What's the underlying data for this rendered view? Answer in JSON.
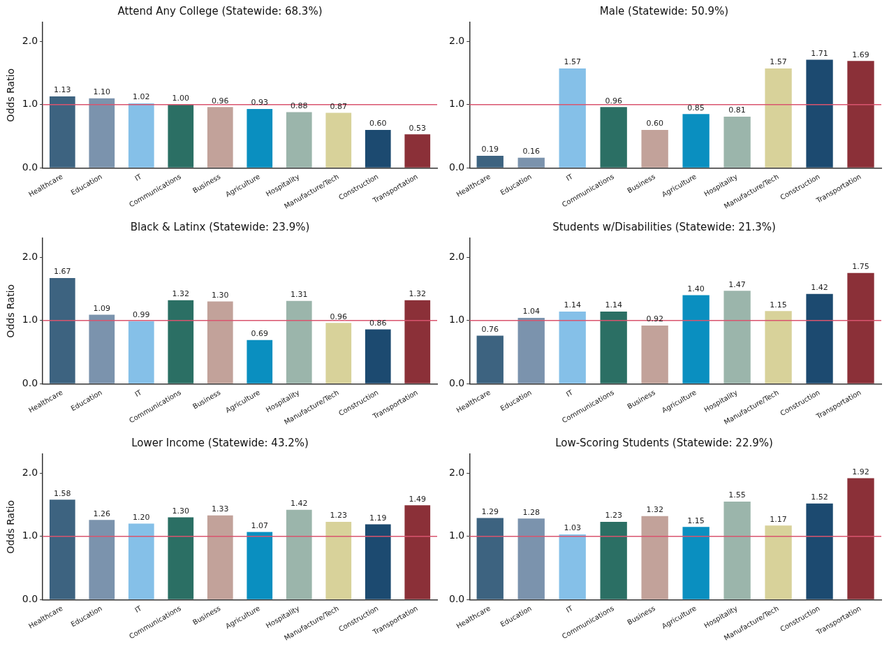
{
  "chart_data": [
    {
      "type": "bar",
      "title": "Attend Any College (Statewide: 68.3%)",
      "ylabel": "Odds Ratio",
      "categories": [
        "Healthcare",
        "Education",
        "IT",
        "Communications",
        "Business",
        "Agriculture",
        "Hospitality",
        "Manufacture/Tech",
        "Construction",
        "Transportation"
      ],
      "values": [
        1.13,
        1.1,
        1.02,
        1.0,
        0.96,
        0.93,
        0.88,
        0.87,
        0.6,
        0.53
      ],
      "value_labels": [
        "1.13",
        "1.10",
        "1.02",
        "1.00",
        "0.96",
        "0.93",
        "0.88",
        "0.87",
        "0.60",
        "0.53"
      ],
      "colors": [
        "#3d6380",
        "#7b93ad",
        "#85c0e8",
        "#2b6f64",
        "#c2a29a",
        "#0a8fc0",
        "#9bb5ab",
        "#d8d29a",
        "#1c4a70",
        "#8b3038"
      ],
      "ylim": [
        0,
        2.3
      ],
      "yticks": [
        {
          "value": 0,
          "label": "0.0"
        },
        {
          "value": 1,
          "label": "1.0"
        },
        {
          "value": 2,
          "label": "2.0"
        }
      ],
      "ref_lines": [
        {
          "axis": "y",
          "value": 1,
          "color": "#d9546e"
        }
      ]
    },
    {
      "type": "bar",
      "title": "Male (Statewide: 50.9%)",
      "categories": [
        "Healthcare",
        "Education",
        "IT",
        "Communications",
        "Business",
        "Agriculture",
        "Hospitality",
        "Manufacture/Tech",
        "Construction",
        "Transportation"
      ],
      "values": [
        0.19,
        0.16,
        1.57,
        0.96,
        0.6,
        0.85,
        0.81,
        1.57,
        1.71,
        1.69
      ],
      "value_labels": [
        "0.19",
        "0.16",
        "1.57",
        "0.96",
        "0.60",
        "0.85",
        "0.81",
        "1.57",
        "1.71",
        "1.69"
      ],
      "colors": [
        "#3d6380",
        "#7b93ad",
        "#85c0e8",
        "#2b6f64",
        "#c2a29a",
        "#0a8fc0",
        "#9bb5ab",
        "#d8d29a",
        "#1c4a70",
        "#8b3038"
      ],
      "ylim": [
        0,
        2.3
      ],
      "yticks": [
        {
          "value": 0,
          "label": "0.0"
        },
        {
          "value": 1,
          "label": "1.0"
        },
        {
          "value": 2,
          "label": "2.0"
        }
      ],
      "ref_lines": [
        {
          "axis": "y",
          "value": 1,
          "color": "#d9546e"
        }
      ]
    },
    {
      "type": "bar",
      "title": "Black & Latinx (Statewide: 23.9%)",
      "ylabel": "Odds Ratio",
      "categories": [
        "Healthcare",
        "Education",
        "IT",
        "Communications",
        "Business",
        "Agriculture",
        "Hospitality",
        "Manufacture/Tech",
        "Construction",
        "Transportation"
      ],
      "values": [
        1.67,
        1.09,
        0.99,
        1.32,
        1.3,
        0.69,
        1.31,
        0.96,
        0.86,
        1.32
      ],
      "value_labels": [
        "1.67",
        "1.09",
        "0.99",
        "1.32",
        "1.30",
        "0.69",
        "1.31",
        "0.96",
        "0.86",
        "1.32"
      ],
      "colors": [
        "#3d6380",
        "#7b93ad",
        "#85c0e8",
        "#2b6f64",
        "#c2a29a",
        "#0a8fc0",
        "#9bb5ab",
        "#d8d29a",
        "#1c4a70",
        "#8b3038"
      ],
      "ylim": [
        0,
        2.3
      ],
      "yticks": [
        {
          "value": 0,
          "label": "0.0"
        },
        {
          "value": 1,
          "label": "1.0"
        },
        {
          "value": 2,
          "label": "2.0"
        }
      ],
      "ref_lines": [
        {
          "axis": "y",
          "value": 1,
          "color": "#d9546e"
        }
      ]
    },
    {
      "type": "bar",
      "title": "Students w/Disabilities (Statewide: 21.3%)",
      "categories": [
        "Healthcare",
        "Education",
        "IT",
        "Communications",
        "Business",
        "Agriculture",
        "Hospitality",
        "Manufacture/Tech",
        "Construction",
        "Transportation"
      ],
      "values": [
        0.76,
        1.04,
        1.14,
        1.14,
        0.92,
        1.4,
        1.47,
        1.15,
        1.42,
        1.75
      ],
      "value_labels": [
        "0.76",
        "1.04",
        "1.14",
        "1.14",
        "0.92",
        "1.40",
        "1.47",
        "1.15",
        "1.42",
        "1.75"
      ],
      "colors": [
        "#3d6380",
        "#7b93ad",
        "#85c0e8",
        "#2b6f64",
        "#c2a29a",
        "#0a8fc0",
        "#9bb5ab",
        "#d8d29a",
        "#1c4a70",
        "#8b3038"
      ],
      "ylim": [
        0,
        2.3
      ],
      "yticks": [
        {
          "value": 0,
          "label": "0.0"
        },
        {
          "value": 1,
          "label": "1.0"
        },
        {
          "value": 2,
          "label": "2.0"
        }
      ],
      "ref_lines": [
        {
          "axis": "y",
          "value": 1,
          "color": "#d9546e"
        }
      ]
    },
    {
      "type": "bar",
      "title": "Lower Income (Statewide: 43.2%)",
      "ylabel": "Odds Ratio",
      "categories": [
        "Healthcare",
        "Education",
        "IT",
        "Communications",
        "Business",
        "Agriculture",
        "Hospitality",
        "Manufacture/Tech",
        "Construction",
        "Transportation"
      ],
      "values": [
        1.58,
        1.26,
        1.2,
        1.3,
        1.33,
        1.07,
        1.42,
        1.23,
        1.19,
        1.49
      ],
      "value_labels": [
        "1.58",
        "1.26",
        "1.20",
        "1.30",
        "1.33",
        "1.07",
        "1.42",
        "1.23",
        "1.19",
        "1.49"
      ],
      "colors": [
        "#3d6380",
        "#7b93ad",
        "#85c0e8",
        "#2b6f64",
        "#c2a29a",
        "#0a8fc0",
        "#9bb5ab",
        "#d8d29a",
        "#1c4a70",
        "#8b3038"
      ],
      "ylim": [
        0,
        2.3
      ],
      "yticks": [
        {
          "value": 0,
          "label": "0.0"
        },
        {
          "value": 1,
          "label": "1.0"
        },
        {
          "value": 2,
          "label": "2.0"
        }
      ],
      "ref_lines": [
        {
          "axis": "y",
          "value": 1,
          "color": "#d9546e"
        }
      ]
    },
    {
      "type": "bar",
      "title": "Low-Scoring Students (Statewide: 22.9%)",
      "categories": [
        "Healthcare",
        "Education",
        "IT",
        "Communications",
        "Business",
        "Agriculture",
        "Hospitality",
        "Manufacture/Tech",
        "Construction",
        "Transportation"
      ],
      "values": [
        1.29,
        1.28,
        1.03,
        1.23,
        1.32,
        1.15,
        1.55,
        1.17,
        1.52,
        1.92
      ],
      "value_labels": [
        "1.29",
        "1.28",
        "1.03",
        "1.23",
        "1.32",
        "1.15",
        "1.55",
        "1.17",
        "1.52",
        "1.92"
      ],
      "colors": [
        "#3d6380",
        "#7b93ad",
        "#85c0e8",
        "#2b6f64",
        "#c2a29a",
        "#0a8fc0",
        "#9bb5ab",
        "#d8d29a",
        "#1c4a70",
        "#8b3038"
      ],
      "ylim": [
        0,
        2.3
      ],
      "yticks": [
        {
          "value": 0,
          "label": "0.0"
        },
        {
          "value": 1,
          "label": "1.0"
        },
        {
          "value": 2,
          "label": "2.0"
        }
      ],
      "ref_lines": [
        {
          "axis": "y",
          "value": 1,
          "color": "#d9546e"
        }
      ]
    }
  ]
}
